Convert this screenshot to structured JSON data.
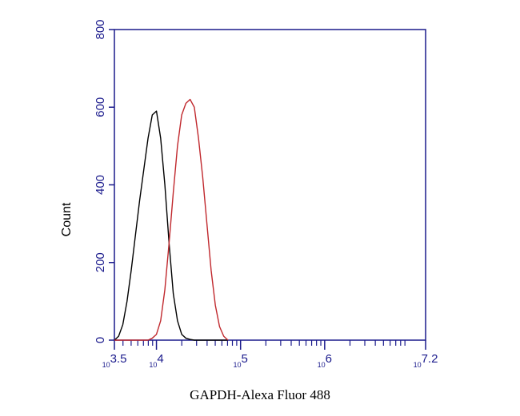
{
  "chart_data": {
    "type": "line",
    "xlabel": "GAPDH-Alexa Fluor 488",
    "ylabel": "Count",
    "xscale": "log",
    "xlim": [
      3162,
      15848932
    ],
    "ylim": [
      0,
      800
    ],
    "yticks": [
      0,
      200,
      400,
      600,
      800
    ],
    "xticks": [
      {
        "value": 3162,
        "label": "10",
        "power": "3.5"
      },
      {
        "value": 10000,
        "label": "10",
        "power": "4"
      },
      {
        "value": 100000,
        "label": "10",
        "power": "5"
      },
      {
        "value": 1000000,
        "label": "10",
        "power": "6"
      },
      {
        "value": 15848932,
        "label": "10",
        "power": "7.2"
      }
    ],
    "x": [
      3162,
      3548,
      3981,
      4467,
      5012,
      5623,
      6310,
      7079,
      7943,
      8913,
      10000,
      11220,
      12589,
      14125,
      15849,
      17783,
      19953,
      22387,
      25119,
      28184,
      31623,
      35481,
      39811,
      44668,
      50119,
      56234,
      63096,
      70795
    ],
    "series": [
      {
        "color": "#000000",
        "values": [
          0,
          10,
          40,
          100,
          180,
          270,
          360,
          440,
          520,
          580,
          590,
          520,
          400,
          250,
          120,
          50,
          15,
          5,
          2,
          0,
          0,
          0,
          0,
          0,
          0,
          0,
          0,
          0
        ]
      },
      {
        "color": "#c0282d",
        "values": [
          0,
          0,
          0,
          0,
          0,
          0,
          0,
          0,
          0,
          5,
          15,
          50,
          130,
          250,
          380,
          500,
          580,
          610,
          620,
          600,
          520,
          420,
          300,
          180,
          90,
          35,
          10,
          0
        ]
      }
    ]
  }
}
